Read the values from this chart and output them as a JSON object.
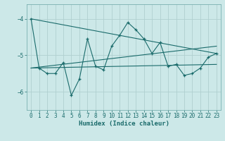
{
  "title": "",
  "xlabel": "Humidex (Indice chaleur)",
  "bg_color": "#cce8e8",
  "line_color": "#1a6b6b",
  "grid_color": "#b0d0d0",
  "xlim": [
    -0.5,
    23.5
  ],
  "ylim": [
    -6.5,
    -3.6
  ],
  "yticks": [
    -6,
    -5,
    -4
  ],
  "xticks": [
    0,
    1,
    2,
    3,
    4,
    5,
    6,
    7,
    8,
    9,
    10,
    11,
    12,
    13,
    14,
    15,
    16,
    17,
    18,
    19,
    20,
    21,
    22,
    23
  ],
  "main_series": {
    "x": [
      0,
      1,
      2,
      3,
      4,
      5,
      6,
      7,
      8,
      9,
      10,
      11,
      12,
      13,
      14,
      15,
      16,
      17,
      18,
      19,
      20,
      21,
      22,
      23
    ],
    "y": [
      -4.0,
      -5.35,
      -5.5,
      -5.5,
      -5.2,
      -6.1,
      -5.65,
      -4.55,
      -5.3,
      -5.4,
      -4.75,
      -4.45,
      -4.1,
      -4.3,
      -4.55,
      -4.95,
      -4.65,
      -5.3,
      -5.25,
      -5.55,
      -5.5,
      -5.35,
      -5.05,
      -4.95
    ]
  },
  "trend_lines": [
    {
      "x": [
        0,
        23
      ],
      "y": [
        -4.0,
        -4.95
      ]
    },
    {
      "x": [
        0,
        23
      ],
      "y": [
        -5.35,
        -4.75
      ]
    },
    {
      "x": [
        0,
        23
      ],
      "y": [
        -5.35,
        -5.25
      ]
    }
  ]
}
